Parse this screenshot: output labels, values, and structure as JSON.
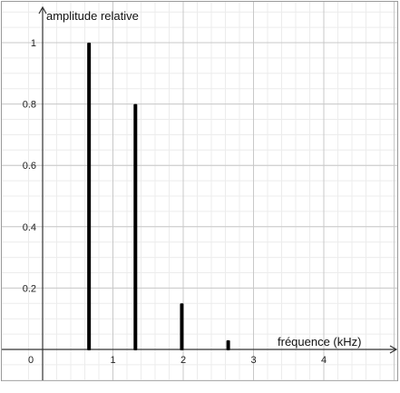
{
  "chart_data": {
    "type": "bar",
    "xlabel": "fréquence (kHz)",
    "ylabel": "amplitude relative",
    "origin_label": "0",
    "x_ticks": [
      "1",
      "2",
      "3",
      "4"
    ],
    "y_ticks": [
      "0.2",
      "0.4",
      "0.6",
      "0.8",
      "1"
    ],
    "xlim": [
      -0.15,
      4.8
    ],
    "ylim": [
      -0.11,
      1.1
    ],
    "grid": true,
    "series": [
      {
        "x": [
          0.66,
          1.32,
          1.98,
          2.64
        ],
        "values": [
          1.0,
          0.8,
          0.15,
          0.03
        ]
      }
    ],
    "colors": {
      "bars": "#000000",
      "grid_major": "#c8c8c8",
      "grid_minor": "#ececec",
      "axis": "#333333",
      "border": "#9a9a9a"
    }
  }
}
